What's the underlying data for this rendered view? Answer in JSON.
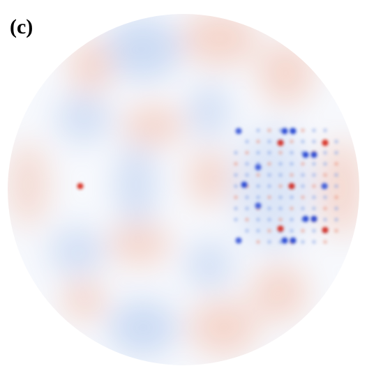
{
  "label": "(c)"
}
